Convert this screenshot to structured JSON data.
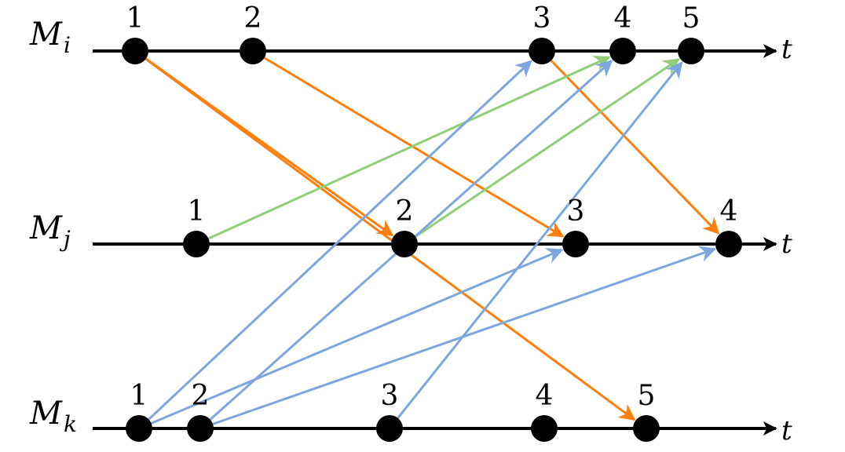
{
  "processes": [
    {
      "id": "i",
      "symbol": "M",
      "subscript": "i",
      "axis_label": "t",
      "events": [
        {
          "label": "1"
        },
        {
          "label": "2"
        },
        {
          "label": "3"
        },
        {
          "label": "4"
        },
        {
          "label": "5"
        }
      ]
    },
    {
      "id": "j",
      "symbol": "M",
      "subscript": "j",
      "axis_label": "t",
      "events": [
        {
          "label": "1"
        },
        {
          "label": "2"
        },
        {
          "label": "3"
        },
        {
          "label": "4"
        }
      ]
    },
    {
      "id": "k",
      "symbol": "M",
      "subscript": "k",
      "axis_label": "t",
      "events": [
        {
          "label": "1"
        },
        {
          "label": "2"
        },
        {
          "label": "3"
        },
        {
          "label": "4"
        },
        {
          "label": "5"
        }
      ]
    }
  ],
  "colors": {
    "axis": "#000000",
    "event": "#000000",
    "from_i": "#ff7f0e",
    "from_j": "#90cf78",
    "from_k": "#7ea6de"
  },
  "messages": [
    {
      "from": "i1",
      "to": "j2",
      "color_key": "from_i"
    },
    {
      "from": "i1",
      "to": "k5",
      "color_key": "from_i"
    },
    {
      "from": "i2",
      "to": "j3",
      "color_key": "from_i"
    },
    {
      "from": "i3",
      "to": "j4",
      "color_key": "from_i"
    },
    {
      "from": "j1",
      "to": "i4",
      "color_key": "from_j"
    },
    {
      "from": "j2",
      "to": "i5",
      "color_key": "from_j"
    },
    {
      "from": "k1",
      "to": "i3",
      "color_key": "from_k"
    },
    {
      "from": "k1",
      "to": "j3",
      "color_key": "from_k"
    },
    {
      "from": "k2",
      "to": "i4",
      "color_key": "from_k"
    },
    {
      "from": "k2",
      "to": "j4",
      "color_key": "from_k"
    },
    {
      "from": "k3",
      "to": "i5",
      "color_key": "from_k"
    }
  ]
}
